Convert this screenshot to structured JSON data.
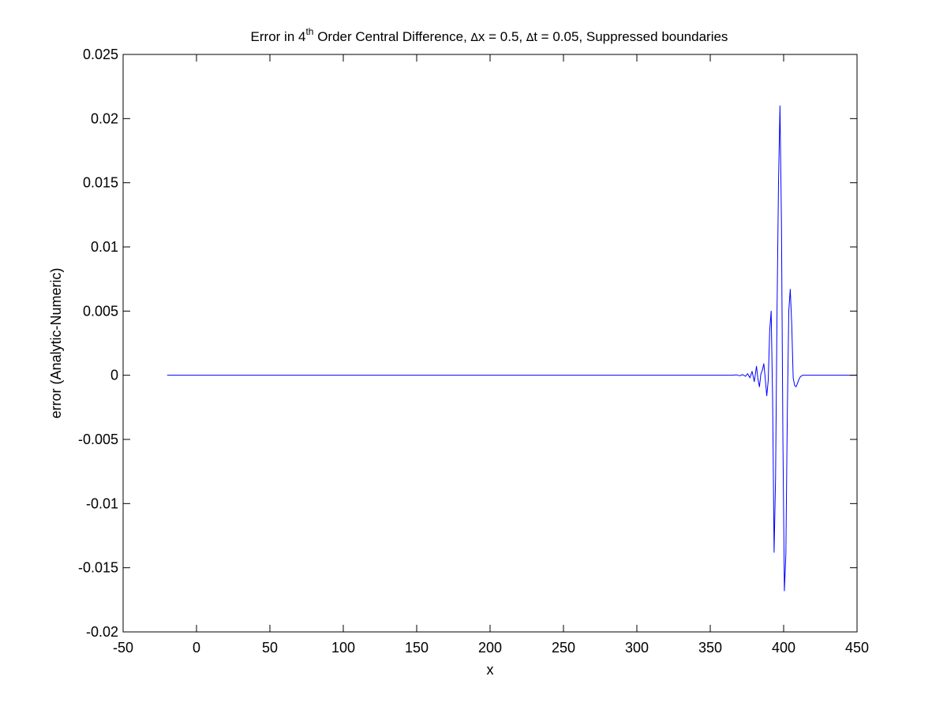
{
  "figure": {
    "background": "#ffffff"
  },
  "chart_data": {
    "type": "line",
    "title": {
      "prefix": "Error in 4",
      "superscript": "th",
      "middle": " Order Central Difference, ",
      "dx_symbol": "∆",
      "dx_text": "x = 0.5, ",
      "dt_symbol": "∆",
      "dt_text": "t = 0.05, Suppressed boundaries"
    },
    "xlabel": "x",
    "ylabel": "error (Analytic-Numeric)",
    "xlim": [
      -50,
      450
    ],
    "ylim": [
      -0.02,
      0.025
    ],
    "xticks": [
      -50,
      0,
      50,
      100,
      150,
      200,
      250,
      300,
      350,
      400,
      450
    ],
    "xtick_labels": [
      "-50",
      "0",
      "50",
      "100",
      "150",
      "200",
      "250",
      "300",
      "350",
      "400",
      "450"
    ],
    "yticks": [
      -0.02,
      -0.015,
      -0.01,
      -0.005,
      0,
      0.005,
      0.01,
      0.015,
      0.02,
      0.025
    ],
    "ytick_labels": [
      "-0.02",
      "-0.015",
      "-0.01",
      "-0.005",
      "0",
      "0.005",
      "0.01",
      "0.015",
      "0.02",
      "0.025"
    ],
    "grid": false,
    "series": [
      {
        "color": "#0000ff",
        "x": [
          -20,
          365,
          368,
          370,
          372,
          374,
          375.5,
          377,
          378.5,
          380,
          381.5,
          382.5,
          383.5,
          384.5,
          385.5,
          386.5,
          387.5,
          388.5,
          389.5,
          390.5,
          391.5,
          392.5,
          393.5,
          394.5,
          395.5,
          396.5,
          397.5,
          398.5,
          399.5,
          400.5,
          401.5,
          402.5,
          403.5,
          404.5,
          405.5,
          406.5,
          407.5,
          408.5,
          409.5,
          410.5,
          411.5,
          413,
          415,
          450
        ],
        "y": [
          0,
          0,
          3e-05,
          -4e-05,
          5e-05,
          -8e-05,
          0.00012,
          -0.0002,
          0.0003,
          -0.0005,
          0.0007,
          -0.0003,
          -0.0009,
          0.0001,
          0.0004,
          0.0009,
          -0.0003,
          -0.0016,
          -0.0004,
          0.0035,
          0.005,
          -0.002,
          -0.0138,
          -0.008,
          0.005,
          0.015,
          0.021,
          0.012,
          -0.005,
          -0.0168,
          -0.014,
          -0.003,
          0.005,
          0.0067,
          0.004,
          -0.0002,
          -0.0008,
          -0.0009,
          -0.0006,
          -0.0003,
          -0.0001,
          0,
          0,
          0
        ]
      }
    ]
  }
}
